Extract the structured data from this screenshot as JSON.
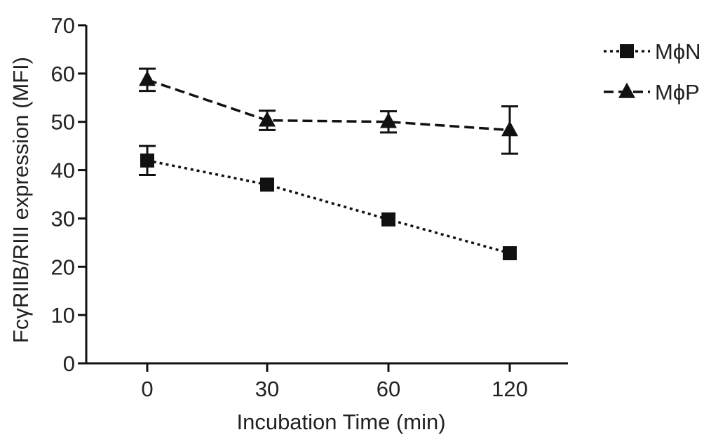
{
  "chart_data": {
    "type": "line",
    "title": "",
    "xlabel": "Incubation Time (min)",
    "ylabel": "FcγRIIB/RIII expression (MFI)",
    "categories": [
      "0",
      "30",
      "60",
      "120"
    ],
    "yticks": [
      "0",
      "10",
      "20",
      "30",
      "40",
      "50",
      "60",
      "70"
    ],
    "ylim": [
      0,
      70
    ],
    "grid": false,
    "legend_position": "top-right",
    "series": [
      {
        "name": "MϕN",
        "marker": "square",
        "line_style": "dotted",
        "values": [
          42,
          37,
          29.8,
          22.8
        ],
        "error": [
          3.0,
          0,
          0,
          0
        ]
      },
      {
        "name": "MϕP",
        "marker": "triangle",
        "line_style": "dashed",
        "values": [
          58.7,
          50.3,
          50,
          48.3
        ],
        "error": [
          2.3,
          2.0,
          2.2,
          4.9
        ]
      }
    ],
    "colors": {
      "ink": "#111111"
    }
  }
}
